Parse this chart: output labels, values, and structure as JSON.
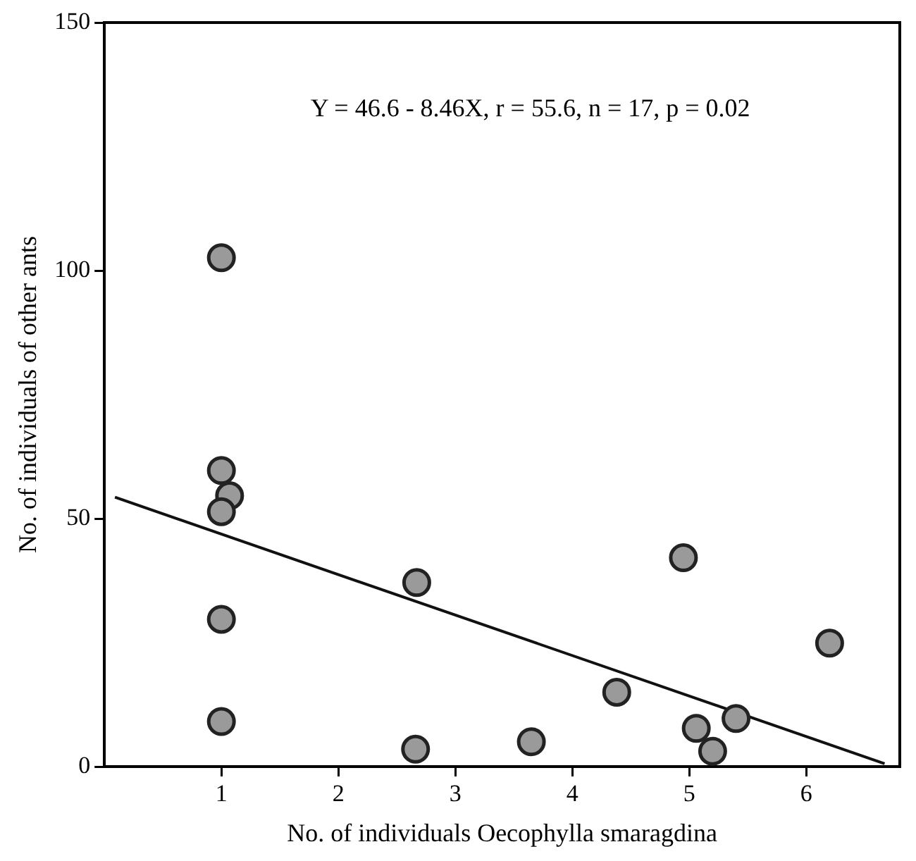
{
  "chart_data": {
    "type": "scatter",
    "xlabel": "No. of individuals Oecophylla smaragdina",
    "ylabel": "No. of individuals of other ants",
    "annotations": [
      "Y = 46.6 - 8.46X, r = 55.6, n = 17, p = 0.02"
    ],
    "xlim": [
      0,
      6.8
    ],
    "xticks": [
      1,
      2,
      3,
      4,
      5,
      6
    ],
    "ylim": [
      0,
      150
    ],
    "yticks": [
      0,
      50,
      100,
      150
    ],
    "grid": false,
    "legend": false,
    "marker": "circle",
    "series": [
      {
        "color": "#9a9a9a",
        "x": [
          1.0,
          1.0,
          1.07,
          1.0,
          1.0,
          1.0,
          2.66,
          2.67,
          3.65,
          4.38,
          4.95,
          5.06,
          5.2,
          5.4,
          6.2
        ],
        "values": [
          102.6,
          59.7,
          54.6,
          51.4,
          29.7,
          9.1,
          3.5,
          37.1,
          5,
          15,
          42.1,
          7.7,
          3.1,
          9.7,
          24.9
        ]
      },
      {
        "type": "line",
        "color": "#111111",
        "marker": "none",
        "x": [
          0.09,
          6.67
        ],
        "values": [
          54.3,
          0.6
        ]
      }
    ]
  }
}
